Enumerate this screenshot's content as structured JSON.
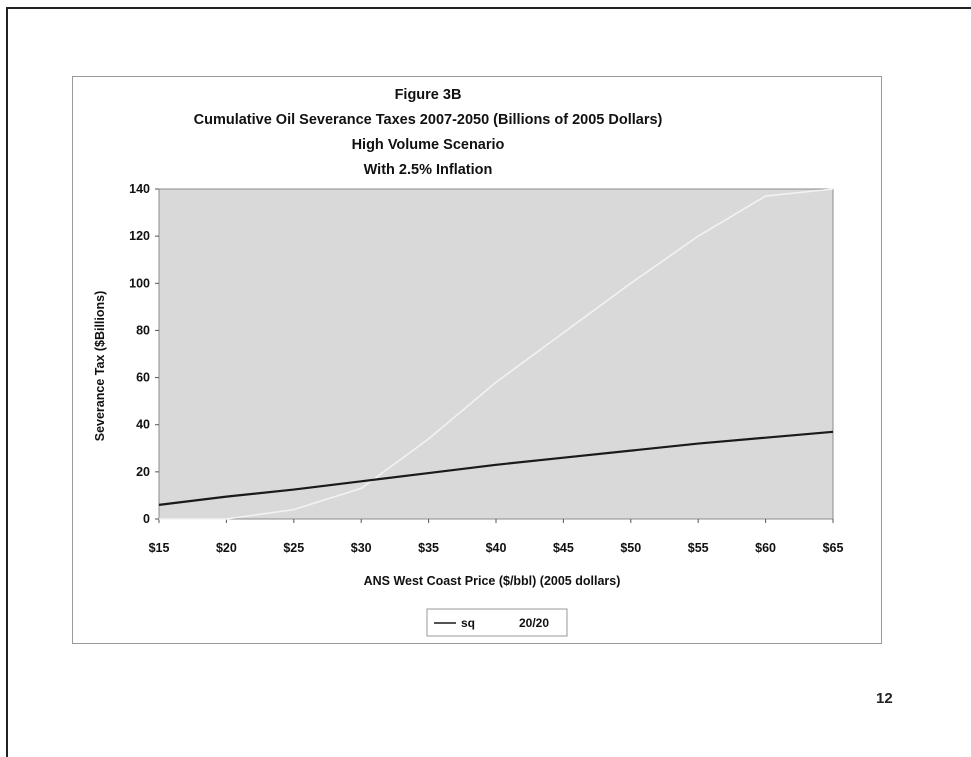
{
  "page": {
    "number": "12"
  },
  "chart_data": {
    "type": "line",
    "title": "Figure 3B",
    "subtitle_lines": [
      "Cumulative Oil Severance Taxes 2007-2050 (Billions of 2005 Dollars)",
      "High Volume Scenario",
      "With 2.5% Inflation"
    ],
    "xlabel": "ANS West Coast Price ($/bbl) (2005 dollars)",
    "ylabel": "Severance Tax ($Billions)",
    "xlim": [
      15,
      65
    ],
    "ylim": [
      0,
      140
    ],
    "x_ticks": [
      15,
      20,
      25,
      30,
      35,
      40,
      45,
      50,
      55,
      60,
      65
    ],
    "x_tick_labels": [
      "$15",
      "$20",
      "$25",
      "$30",
      "$35",
      "$40",
      "$45",
      "$50",
      "$55",
      "$60",
      "$65"
    ],
    "y_ticks": [
      0,
      20,
      40,
      60,
      80,
      100,
      120,
      140
    ],
    "y_tick_labels": [
      "0",
      "20",
      "40",
      "60",
      "80",
      "100",
      "120",
      "140"
    ],
    "grid": false,
    "plot_background": "#d9d9d9",
    "legend_position": "bottom",
    "series": [
      {
        "name": "sq",
        "color": "#1a1a1a",
        "x": [
          15,
          20,
          25,
          30,
          35,
          40,
          45,
          50,
          55,
          60,
          65
        ],
        "y": [
          6,
          9.5,
          12.5,
          16,
          19.5,
          23,
          26,
          29,
          32,
          34.5,
          37
        ]
      },
      {
        "name": "20/20",
        "color": "#f2f2f2",
        "x": [
          15,
          20,
          25,
          30,
          35,
          40,
          45,
          50,
          55,
          60,
          65
        ],
        "y": [
          0,
          0,
          4,
          13,
          34,
          58,
          79,
          100,
          120,
          137,
          140
        ]
      }
    ]
  }
}
